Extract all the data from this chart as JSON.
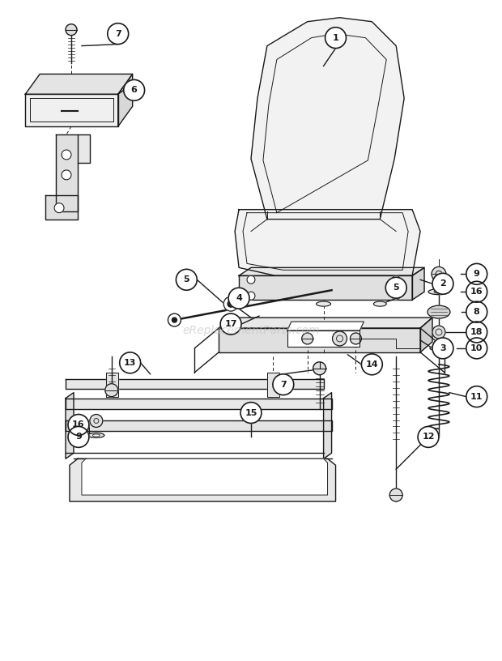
{
  "bg": "#ffffff",
  "lc": "#1a1a1a",
  "wm": "eReplacementParts.com",
  "wm_color": "#bbbbbb",
  "fig_w": 6.2,
  "fig_h": 8.16,
  "dpi": 100
}
